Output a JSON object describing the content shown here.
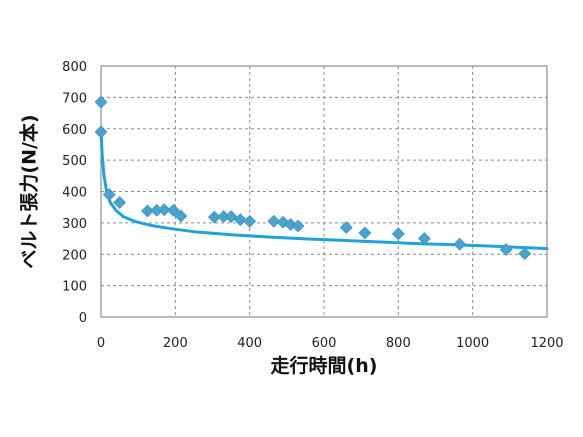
{
  "chart_data": {
    "type": "scatter",
    "title": "",
    "xlabel": "走行時間(h)",
    "ylabel": "ベルト張力(N/本)",
    "xlim": [
      0,
      1200
    ],
    "ylim": [
      0,
      800
    ],
    "x_ticks": [
      "0",
      "200",
      "400",
      "600",
      "800",
      "1000",
      "1200"
    ],
    "y_ticks": [
      "0",
      "100",
      "200",
      "300",
      "400",
      "500",
      "600",
      "700",
      "800"
    ],
    "grid": true,
    "legend": "none",
    "series": [
      {
        "type": "scatter",
        "color": "#4aa3cf",
        "marker": "diamond",
        "x": [
          0,
          0,
          22,
          50,
          125,
          150,
          170,
          195,
          215,
          305,
          330,
          350,
          375,
          400,
          465,
          490,
          510,
          530,
          660,
          710,
          800,
          870,
          965,
          1090,
          1140
        ],
        "y": [
          685,
          590,
          390,
          365,
          338,
          340,
          342,
          340,
          322,
          318,
          320,
          320,
          310,
          305,
          305,
          302,
          295,
          290,
          285,
          268,
          265,
          250,
          232,
          215,
          202
        ]
      },
      {
        "type": "line",
        "color": "#1fa3da",
        "x": [
          0,
          3,
          8,
          15,
          25,
          40,
          60,
          90,
          130,
          180,
          250,
          350,
          450,
          550,
          650,
          750,
          850,
          950,
          1050,
          1150,
          1200
        ],
        "y": [
          600,
          520,
          450,
          400,
          365,
          340,
          320,
          305,
          293,
          283,
          272,
          262,
          255,
          249,
          244,
          239,
          234,
          230,
          226,
          221,
          218
        ]
      }
    ]
  }
}
